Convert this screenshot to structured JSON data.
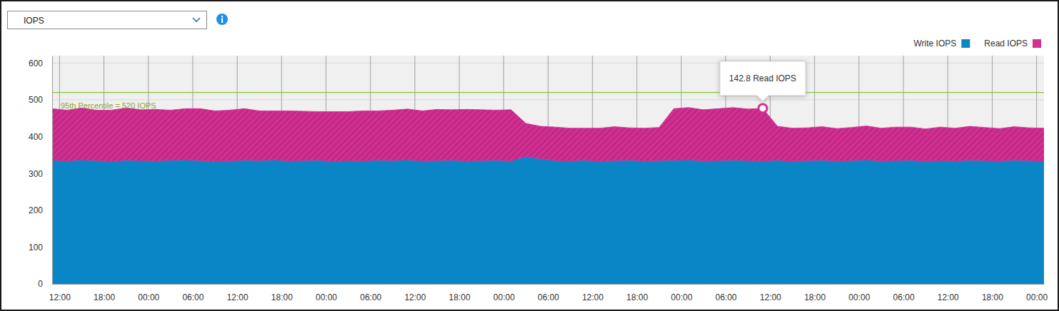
{
  "chart_data": {
    "type": "area",
    "stacked": true,
    "title": "IOPS",
    "legend": "top-right",
    "grid": true,
    "x": [
      -1,
      1,
      3,
      5,
      7,
      9,
      11,
      13,
      15,
      17,
      19,
      21,
      23,
      25,
      27,
      29,
      31,
      33,
      35,
      37,
      39,
      41,
      43,
      45,
      47,
      49,
      51,
      53,
      55,
      57,
      59,
      61,
      63,
      65,
      67,
      69,
      71,
      73,
      75,
      77,
      79,
      81,
      83,
      85,
      87,
      89,
      91,
      93,
      95,
      97,
      99,
      101,
      103,
      105,
      107,
      109,
      111,
      113,
      115,
      117,
      119,
      121,
      123,
      125,
      127,
      129,
      131,
      133
    ],
    "xlim": [
      -1,
      133
    ],
    "xticks": [
      {
        "value": 0,
        "label": "12:00"
      },
      {
        "value": 6,
        "label": "18:00"
      },
      {
        "value": 12,
        "label": "00:00"
      },
      {
        "value": 18,
        "label": "06:00"
      },
      {
        "value": 24,
        "label": "12:00"
      },
      {
        "value": 30,
        "label": "18:00"
      },
      {
        "value": 36,
        "label": "00:00"
      },
      {
        "value": 42,
        "label": "06:00"
      },
      {
        "value": 48,
        "label": "12:00"
      },
      {
        "value": 54,
        "label": "18:00"
      },
      {
        "value": 60,
        "label": "00:00"
      },
      {
        "value": 66,
        "label": "06:00"
      },
      {
        "value": 72,
        "label": "12:00"
      },
      {
        "value": 78,
        "label": "18:00"
      },
      {
        "value": 84,
        "label": "00:00"
      },
      {
        "value": 90,
        "label": "06:00"
      },
      {
        "value": 96,
        "label": "12:00"
      },
      {
        "value": 102,
        "label": "18:00"
      },
      {
        "value": 108,
        "label": "00:00"
      },
      {
        "value": 114,
        "label": "06:00"
      },
      {
        "value": 120,
        "label": "12:00"
      },
      {
        "value": 126,
        "label": "18:00"
      },
      {
        "value": 132,
        "label": "00:00"
      }
    ],
    "ylim": [
      0,
      620
    ],
    "yticks": [
      0,
      100,
      200,
      300,
      400,
      500,
      600
    ],
    "series": [
      {
        "name": "Write IOPS",
        "color": "#0a86c6",
        "values": [
          336,
          334,
          337,
          335,
          333,
          336,
          335,
          334,
          336,
          337,
          335,
          333,
          334,
          336,
          335,
          337,
          334,
          335,
          336,
          333,
          335,
          334,
          336,
          335,
          337,
          334,
          335,
          336,
          334,
          335,
          336,
          334,
          346,
          340,
          335,
          334,
          336,
          333,
          335,
          336,
          334,
          335,
          336,
          337,
          334,
          335,
          336,
          335,
          334,
          336,
          333,
          335,
          336,
          334,
          335,
          337,
          334,
          335,
          336,
          333,
          335,
          334,
          336,
          335,
          334,
          336,
          335,
          333
        ]
      },
      {
        "name": "Read IOPS",
        "color": "#d42f93",
        "values": [
          140,
          138,
          141,
          137,
          139,
          142,
          138,
          140,
          136,
          139,
          141,
          137,
          138,
          140,
          135,
          133,
          136,
          134,
          132,
          135,
          133,
          136,
          134,
          137,
          138,
          136,
          139,
          137,
          140,
          138,
          136,
          139,
          90,
          88,
          91,
          89,
          87,
          90,
          92,
          88,
          89,
          90,
          140,
          142,
          139,
          141,
          143,
          140,
          142.8,
          92,
          90,
          89,
          91,
          88,
          90,
          92,
          89,
          91,
          90,
          88,
          91,
          89,
          92,
          90,
          88,
          91,
          89,
          90
        ]
      }
    ],
    "annotations": [
      {
        "type": "line",
        "y": 520,
        "text": "95th Percentile = 520 IOPS"
      },
      {
        "type": "tooltip",
        "x": 95,
        "value": 142.8,
        "text": "142.8 Read IOPS"
      }
    ]
  }
}
